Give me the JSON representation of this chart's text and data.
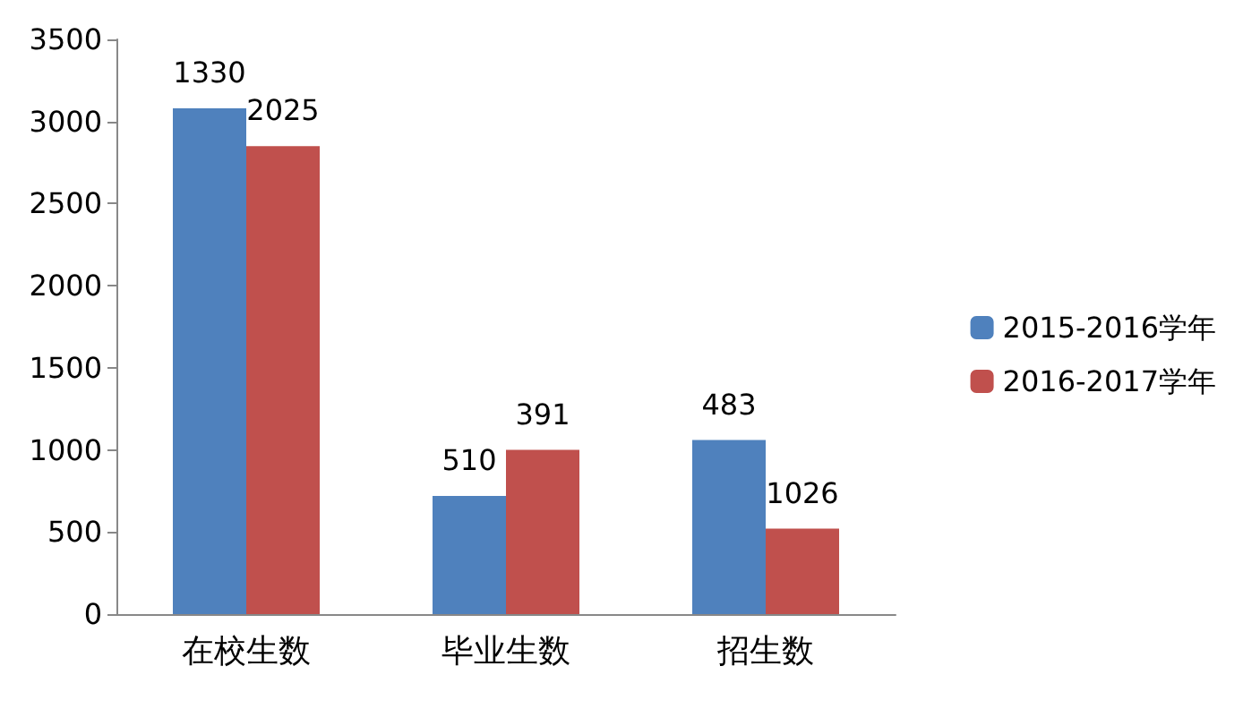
{
  "chart_data": {
    "type": "bar",
    "categories": [
      "在校生数",
      "毕业生数",
      "招生数"
    ],
    "series": [
      {
        "name": "2015-2016学年",
        "color": "#4f81bd",
        "values": [
          3080,
          720,
          1060
        ]
      },
      {
        "name": "2016-2017学年",
        "color": "#c0504d",
        "values": [
          2850,
          1000,
          520
        ]
      }
    ],
    "annotations": [
      {
        "text": "1330",
        "x": "在校生数",
        "y": 3080
      },
      {
        "text": "2025",
        "x": "在校生数",
        "y": 2850
      },
      {
        "text": "510",
        "x": "毕业生数",
        "y": 720
      },
      {
        "text": "391",
        "x": "毕业生数",
        "y": 1000
      },
      {
        "text": "483",
        "x": "招生数",
        "y": 1060
      },
      {
        "text": "1026",
        "x": "招生数",
        "y": 520
      }
    ],
    "ylim": [
      0,
      3500
    ],
    "yticks": [
      0,
      500,
      1000,
      1500,
      2000,
      2500,
      3000,
      3500
    ],
    "grid": false,
    "legend": "right"
  }
}
